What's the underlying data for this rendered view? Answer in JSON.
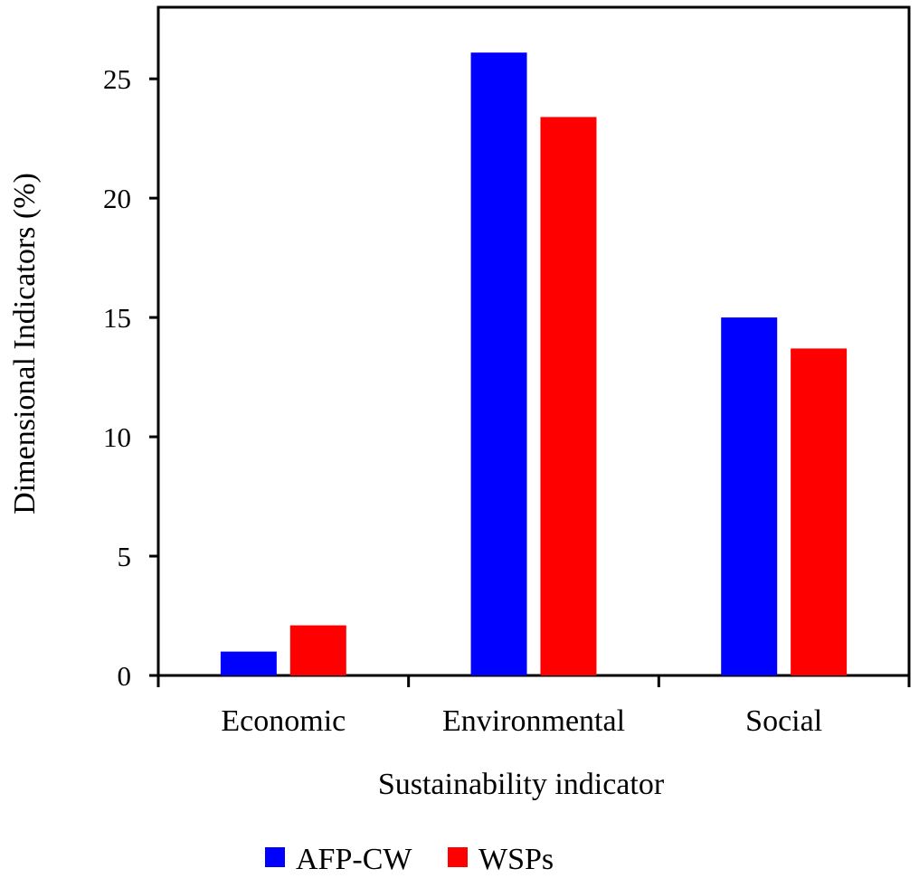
{
  "chart_data": {
    "type": "bar",
    "categories": [
      "Economic",
      "Environmental",
      "Social"
    ],
    "series": [
      {
        "name": "AFP-CW",
        "color": "#0000ff",
        "values": [
          1.0,
          26.1,
          15.0
        ]
      },
      {
        "name": "WSPs",
        "color": "#ff0000",
        "values": [
          2.1,
          23.4,
          13.7
        ]
      }
    ],
    "title": "",
    "xlabel": "Sustainability indicator",
    "ylabel": "Dimensional Indicators (%)",
    "ylim": [
      0,
      28
    ],
    "yticks": [
      0,
      5,
      10,
      15,
      20,
      25
    ],
    "grid": false,
    "legend_position": "bottom-center"
  }
}
